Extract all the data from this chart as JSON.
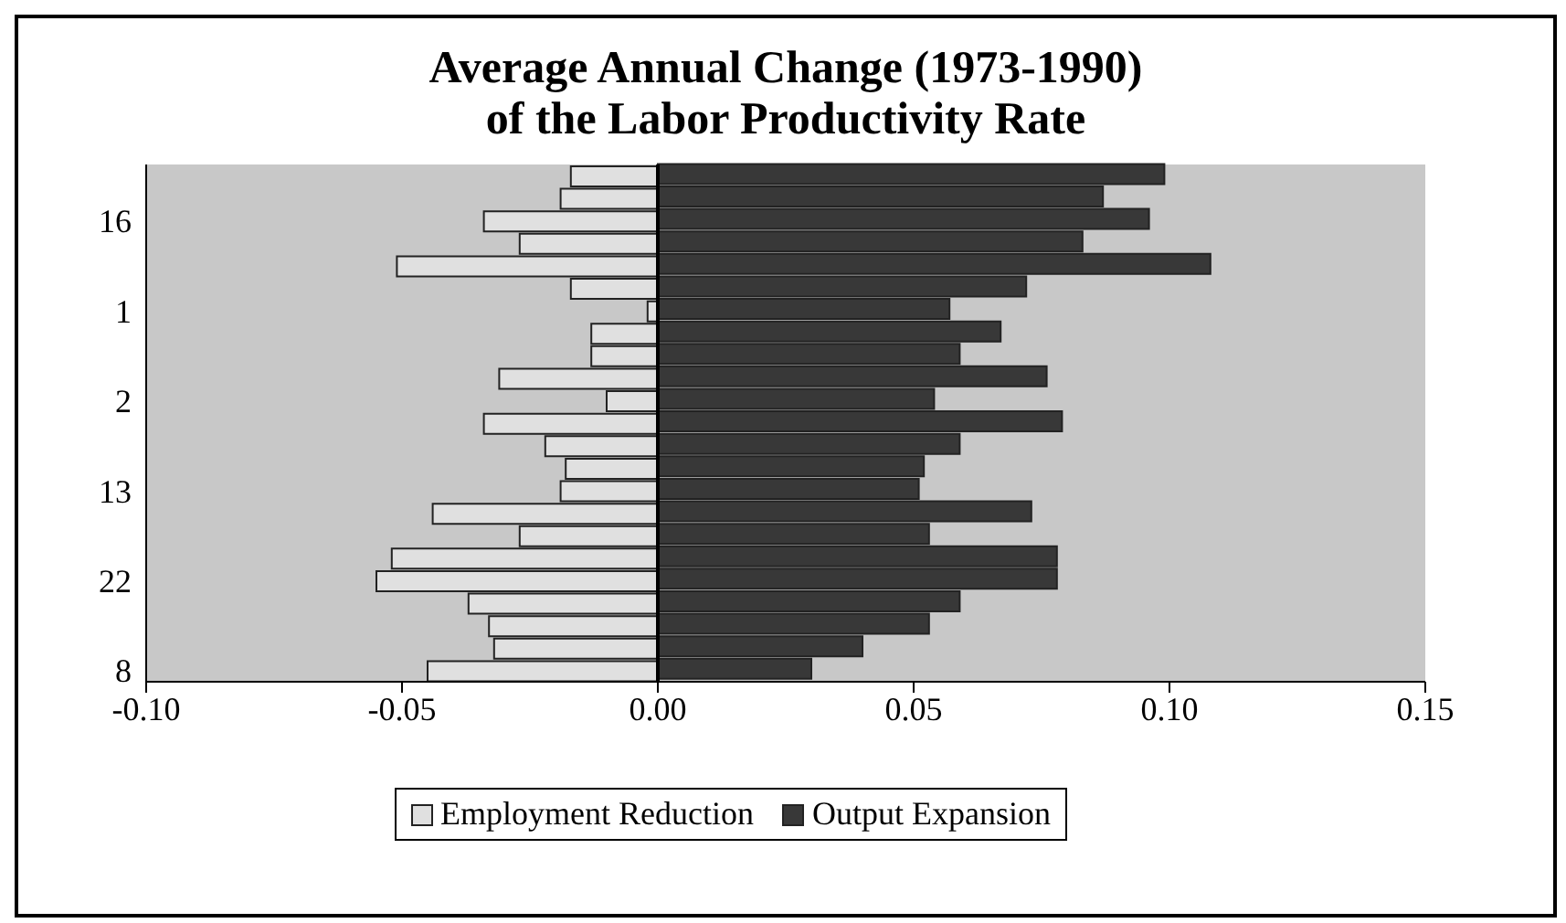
{
  "chart_data": {
    "type": "bar",
    "orientation": "horizontal",
    "title": "Average Annual Change (1973-1990)\nof the Labor Productivity Rate",
    "categories": [
      null,
      null,
      "16",
      null,
      null,
      null,
      "1",
      null,
      null,
      null,
      "2",
      null,
      null,
      null,
      "13",
      null,
      null,
      null,
      "22",
      null,
      null,
      null,
      "8"
    ],
    "series": [
      {
        "name": "Employment Reduction",
        "color": "#e0e0e0",
        "values": [
          -0.017,
          -0.019,
          -0.034,
          -0.027,
          -0.051,
          -0.017,
          -0.002,
          -0.013,
          -0.013,
          -0.031,
          -0.01,
          -0.034,
          -0.022,
          -0.018,
          -0.019,
          -0.044,
          -0.027,
          -0.052,
          -0.055,
          -0.037,
          -0.033,
          -0.032,
          -0.045
        ]
      },
      {
        "name": "Output Expansion",
        "color": "#383838",
        "values": [
          0.099,
          0.087,
          0.096,
          0.083,
          0.108,
          0.072,
          0.057,
          0.067,
          0.059,
          0.076,
          0.054,
          0.079,
          0.059,
          0.052,
          0.051,
          0.073,
          0.053,
          0.078,
          0.078,
          0.059,
          0.053,
          0.04,
          0.03
        ]
      }
    ],
    "xlim": [
      -0.1,
      0.15
    ],
    "xticks": [
      {
        "value": -0.1,
        "label": "-0.10"
      },
      {
        "value": -0.05,
        "label": "-0.05"
      },
      {
        "value": 0,
        "label": "0.00"
      },
      {
        "value": 0.05,
        "label": "0.05"
      },
      {
        "value": 0.1,
        "label": "0.10"
      },
      {
        "value": 0.15,
        "label": "0.15"
      }
    ],
    "ref_lines": [
      {
        "axis": "x",
        "value": 0,
        "color": "#000000"
      }
    ],
    "grid": false,
    "legend": "bottom"
  }
}
